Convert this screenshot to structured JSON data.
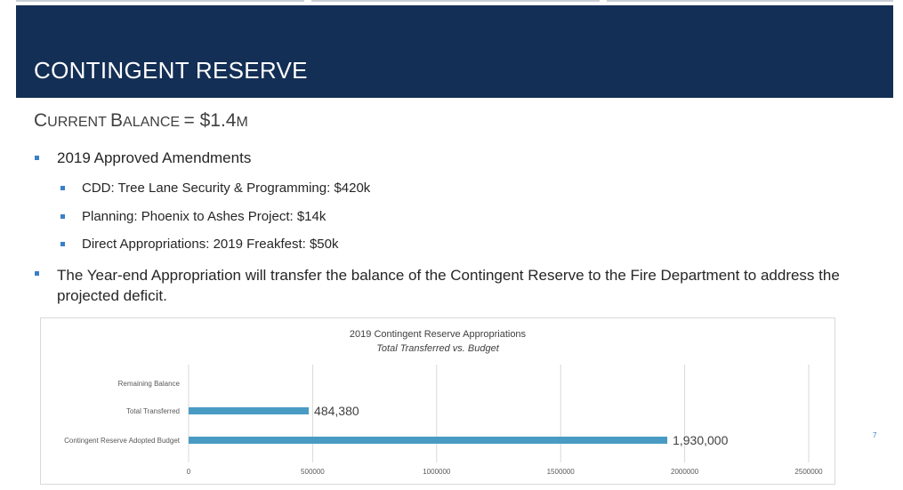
{
  "slide": {
    "title": "CONTINGENT RESERVE",
    "subtitle": {
      "c1": "C",
      "w1": "URRENT ",
      "c2": "B",
      "w2": "ALANCE ",
      "amount": "= $1.4",
      "suffix": "M"
    },
    "bullets": [
      "2019 Approved Amendments",
      "CDD: Tree Lane Security & Programming: $420k",
      "Planning: Phoenix to Ashes Project: $14k",
      "Direct Appropriations: 2019 Freakfest: $50k",
      "The Year-end Appropriation will transfer the balance of the Contingent Reserve to the Fire Department to address the projected deficit."
    ],
    "page_number": "7"
  },
  "colors": {
    "header": "#142f55",
    "bullet": "#3b7fc4",
    "bar": "#4a9bc4"
  },
  "chart_data": {
    "type": "bar",
    "orientation": "horizontal",
    "title": "2019 Contingent Reserve Appropriations",
    "subtitle": "Total Transferred vs. Budget",
    "categories": [
      "Remaining Balance",
      "Total Transferred",
      "Contingent Reserve Adopted Budget"
    ],
    "values": [
      null,
      484380,
      1930000
    ],
    "data_labels": [
      "",
      "484,380",
      "1,930,000"
    ],
    "xlim": [
      0,
      2500000
    ],
    "xticks": [
      0,
      500000,
      1000000,
      1500000,
      2000000,
      2500000
    ],
    "xtick_labels": [
      "0",
      "500000",
      "1000000",
      "1500000",
      "2000000",
      "2500000"
    ],
    "grid": true,
    "legend": "none"
  }
}
